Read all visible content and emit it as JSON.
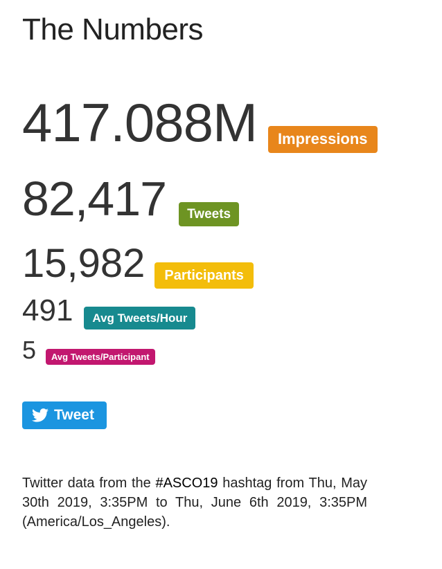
{
  "title": "The Numbers",
  "stats": {
    "impressions": {
      "value": "417.088M",
      "label": "Impressions"
    },
    "tweets": {
      "value": "82,417",
      "label": "Tweets"
    },
    "participants": {
      "value": "15,982",
      "label": "Participants"
    },
    "avg_per_hour": {
      "value": "491",
      "label": "Avg Tweets/Hour"
    },
    "avg_per_participant": {
      "value": "5",
      "label": "Avg Tweets/Participant"
    }
  },
  "colors": {
    "impressions": "#e8861b",
    "tweets": "#6e9423",
    "participants": "#f3bd0b",
    "avg_per_hour": "#178a8f",
    "avg_per_participant": "#c2176f",
    "tweet_button": "#1b95e0"
  },
  "tweet_button": {
    "label": "Tweet",
    "icon": "twitter-bird-icon"
  },
  "description": {
    "prefix": "Twitter data from the ",
    "hashtag": "#ASCO19",
    "suffix": " hashtag from Thu, May 30th 2019, 3:35PM to Thu, June 6th 2019, 3:35PM (America/Los_Angeles)."
  }
}
